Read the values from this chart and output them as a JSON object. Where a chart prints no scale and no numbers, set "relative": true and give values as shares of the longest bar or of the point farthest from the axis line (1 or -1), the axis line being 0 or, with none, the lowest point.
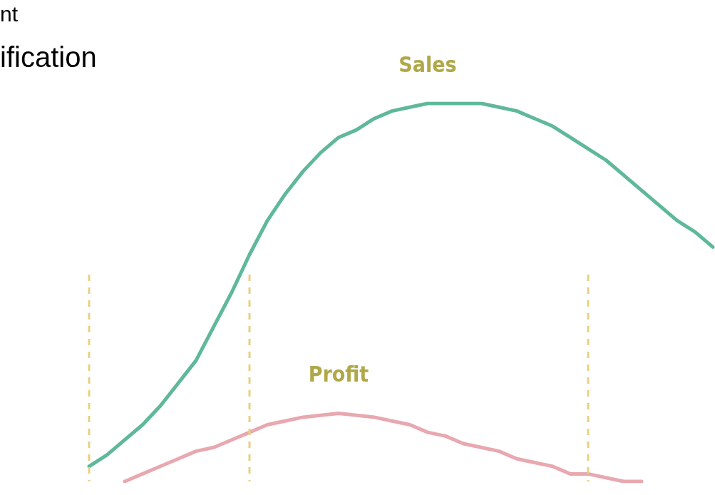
{
  "chart_data": {
    "type": "line",
    "relative": true,
    "annotations": [
      "nt",
      "ification"
    ],
    "categories": [
      null,
      null,
      null,
      null,
      null,
      null,
      null,
      null,
      null,
      null,
      null,
      null,
      null,
      null,
      null,
      null,
      null,
      null,
      null,
      null,
      null,
      null,
      null,
      null,
      null,
      null,
      null,
      null,
      null,
      null,
      null,
      null,
      null,
      null,
      null,
      null,
      null
    ],
    "series": [
      {
        "name": "Sales",
        "color": "#5fb89a",
        "values": [
          null,
          0.04,
          0.07,
          0.11,
          0.15,
          0.2,
          0.26,
          0.32,
          0.41,
          0.5,
          0.6,
          0.69,
          0.76,
          0.82,
          0.87,
          0.91,
          0.93,
          0.96,
          0.98,
          0.99,
          1,
          1,
          1,
          1,
          0.99,
          0.98,
          0.96,
          0.94,
          0.91,
          0.88,
          0.85,
          0.81,
          0.77,
          0.73,
          0.69,
          0.66,
          0.62
        ]
      },
      {
        "name": "Profit",
        "color": "#e8a8b0",
        "values": [
          null,
          null,
          null,
          0,
          0.02,
          0.04,
          0.06,
          0.08,
          0.09,
          0.11,
          0.13,
          0.15,
          0.16,
          0.17,
          0.175,
          0.18,
          0.175,
          0.17,
          0.16,
          0.15,
          0.13,
          0.12,
          0.1,
          0.09,
          0.08,
          0.06,
          0.05,
          0.04,
          0.02,
          0.02,
          0.01,
          0,
          0,
          null,
          null,
          null,
          null
        ]
      }
    ],
    "grid": false,
    "legend": false,
    "marker": "none",
    "line_style": "solid"
  }
}
